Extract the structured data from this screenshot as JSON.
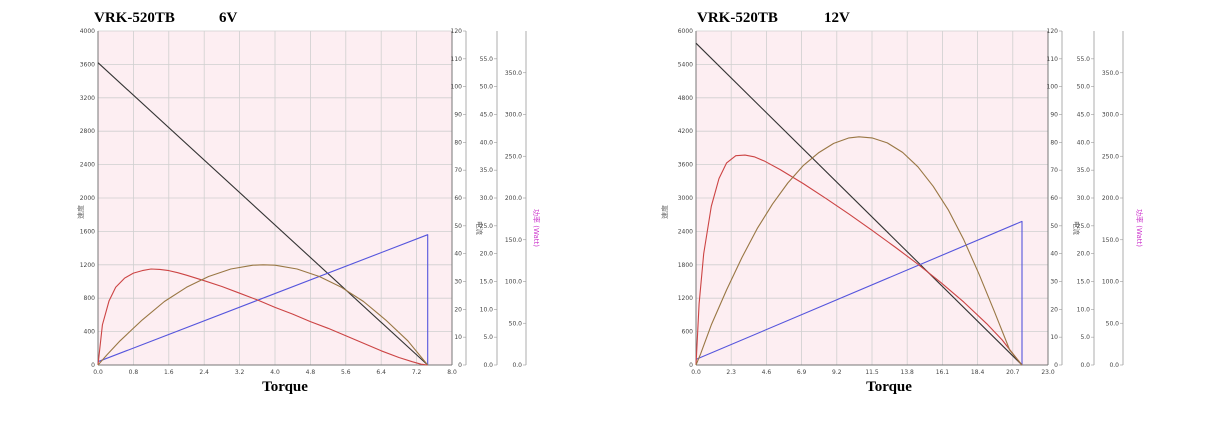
{
  "chart_data": [
    {
      "type": "line",
      "title": "VRK-520TB",
      "voltage": "6V",
      "xlabel": "Torque",
      "ylabel_left": "速度",
      "ylabel_mid": "电流",
      "ylabel_power": "功率 (Watt)",
      "x_ticks": [
        "0.0",
        "0.8",
        "1.6",
        "2.4",
        "3.2",
        "4.0",
        "4.8",
        "5.6",
        "6.4",
        "7.2",
        "8.0"
      ],
      "xlim": [
        0,
        8
      ],
      "y_left_ticks": [
        "0",
        "400",
        "800",
        "1200",
        "1600",
        "2000",
        "2400",
        "2800",
        "3200",
        "3600",
        "4000"
      ],
      "y_left_lim": [
        0,
        4000
      ],
      "y_mid_ticks": [
        "0",
        "10",
        "20",
        "30",
        "40",
        "50",
        "60",
        "70",
        "80",
        "90",
        "100",
        "110",
        "120"
      ],
      "y_mid_lim": [
        0,
        120
      ],
      "y_eff_ticks": [
        "0.0",
        "5.0",
        "10.0",
        "15.0",
        "20.0",
        "25.0",
        "30.0",
        "35.0",
        "40.0",
        "45.0",
        "50.0",
        "55.0"
      ],
      "y_eff_lim": [
        0,
        60
      ],
      "y_pow_ticks": [
        "0.0",
        "50.0",
        "100.0",
        "150.0",
        "200.0",
        "250.0",
        "300.0",
        "350.0"
      ],
      "y_pow_lim": [
        0,
        400
      ],
      "series": [
        {
          "id": "speed",
          "color": "#333333",
          "x": [
            0,
            7.45
          ],
          "y": [
            3620,
            0
          ]
        },
        {
          "id": "current",
          "color": "#5555dd",
          "x": [
            0,
            7.45,
            7.45
          ],
          "y": [
            40,
            1560,
            0
          ]
        },
        {
          "id": "efficiency",
          "color": "#cc4444",
          "x": [
            0,
            0.1,
            0.25,
            0.4,
            0.6,
            0.8,
            1.0,
            1.2,
            1.4,
            1.6,
            1.8,
            2.0,
            2.4,
            2.8,
            3.2,
            3.6,
            4.0,
            4.4,
            4.8,
            5.2,
            5.6,
            6.0,
            6.4,
            6.8,
            7.1,
            7.3,
            7.45
          ],
          "y": [
            0,
            480,
            770,
            930,
            1040,
            1100,
            1130,
            1150,
            1145,
            1130,
            1105,
            1075,
            1010,
            940,
            860,
            780,
            690,
            610,
            520,
            440,
            350,
            260,
            170,
            90,
            40,
            10,
            0
          ]
        },
        {
          "id": "power",
          "color": "#997744",
          "x": [
            0,
            0.2,
            0.5,
            1.0,
            1.5,
            2.0,
            2.5,
            3.0,
            3.5,
            3.73,
            4.0,
            4.5,
            5.0,
            5.5,
            6.0,
            6.5,
            7.0,
            7.45
          ],
          "y": [
            0,
            120,
            290,
            540,
            760,
            930,
            1060,
            1150,
            1195,
            1200,
            1195,
            1150,
            1060,
            930,
            760,
            540,
            290,
            0
          ]
        }
      ]
    },
    {
      "type": "line",
      "title": "VRK-520TB",
      "voltage": "12V",
      "xlabel": "Torque",
      "ylabel_left": "速度",
      "ylabel_mid": "电流",
      "ylabel_power": "功率 (Watt)",
      "x_ticks": [
        "0.0",
        "2.3",
        "4.6",
        "6.9",
        "9.2",
        "11.5",
        "13.8",
        "16.1",
        "18.4",
        "20.7",
        "23.0"
      ],
      "xlim": [
        0,
        23
      ],
      "y_left_ticks": [
        "0",
        "600",
        "1200",
        "1800",
        "2400",
        "3000",
        "3600",
        "4200",
        "4800",
        "5400",
        "6000"
      ],
      "y_left_lim": [
        0,
        6000
      ],
      "y_mid_ticks": [
        "0",
        "10",
        "20",
        "30",
        "40",
        "50",
        "60",
        "70",
        "80",
        "90",
        "100",
        "110",
        "120"
      ],
      "y_mid_lim": [
        0,
        120
      ],
      "y_eff_ticks": [
        "0.0",
        "5.0",
        "10.0",
        "15.0",
        "20.0",
        "25.0",
        "30.0",
        "35.0",
        "40.0",
        "45.0",
        "50.0",
        "55.0"
      ],
      "y_eff_lim": [
        0,
        60
      ],
      "y_pow_ticks": [
        "0.0",
        "50.0",
        "100.0",
        "150.0",
        "200.0",
        "250.0",
        "300.0",
        "350.0"
      ],
      "y_pow_lim": [
        0,
        400
      ],
      "series": [
        {
          "id": "speed",
          "color": "#333333",
          "x": [
            0,
            21.3
          ],
          "y": [
            5780,
            0
          ]
        },
        {
          "id": "current",
          "color": "#5555dd",
          "x": [
            0,
            21.3,
            21.3
          ],
          "y": [
            100,
            2580,
            0
          ]
        },
        {
          "id": "efficiency",
          "color": "#cc4444",
          "x": [
            0,
            0.2,
            0.5,
            1.0,
            1.5,
            2.0,
            2.6,
            3.2,
            3.8,
            4.5,
            5.5,
            7.0,
            8.5,
            10.0,
            11.5,
            13.0,
            14.5,
            16.0,
            17.5,
            19.0,
            20.0,
            20.8,
            21.3
          ],
          "y": [
            0,
            1100,
            2000,
            2850,
            3350,
            3630,
            3760,
            3770,
            3740,
            3660,
            3510,
            3260,
            2990,
            2710,
            2420,
            2120,
            1810,
            1480,
            1130,
            740,
            450,
            170,
            0
          ]
        },
        {
          "id": "power",
          "color": "#997744",
          "x": [
            0,
            0.3,
            1.0,
            2.0,
            3.0,
            4.0,
            5.0,
            6.0,
            7.0,
            8.0,
            9.0,
            10.0,
            10.65,
            11.5,
            12.5,
            13.5,
            14.5,
            15.5,
            16.5,
            17.5,
            18.5,
            19.5,
            20.5,
            21.3
          ],
          "y": [
            0,
            200,
            720,
            1350,
            1930,
            2450,
            2890,
            3270,
            3580,
            3810,
            3980,
            4080,
            4100,
            4080,
            3990,
            3820,
            3560,
            3210,
            2780,
            2250,
            1630,
            960,
            270,
            0
          ]
        }
      ]
    }
  ]
}
